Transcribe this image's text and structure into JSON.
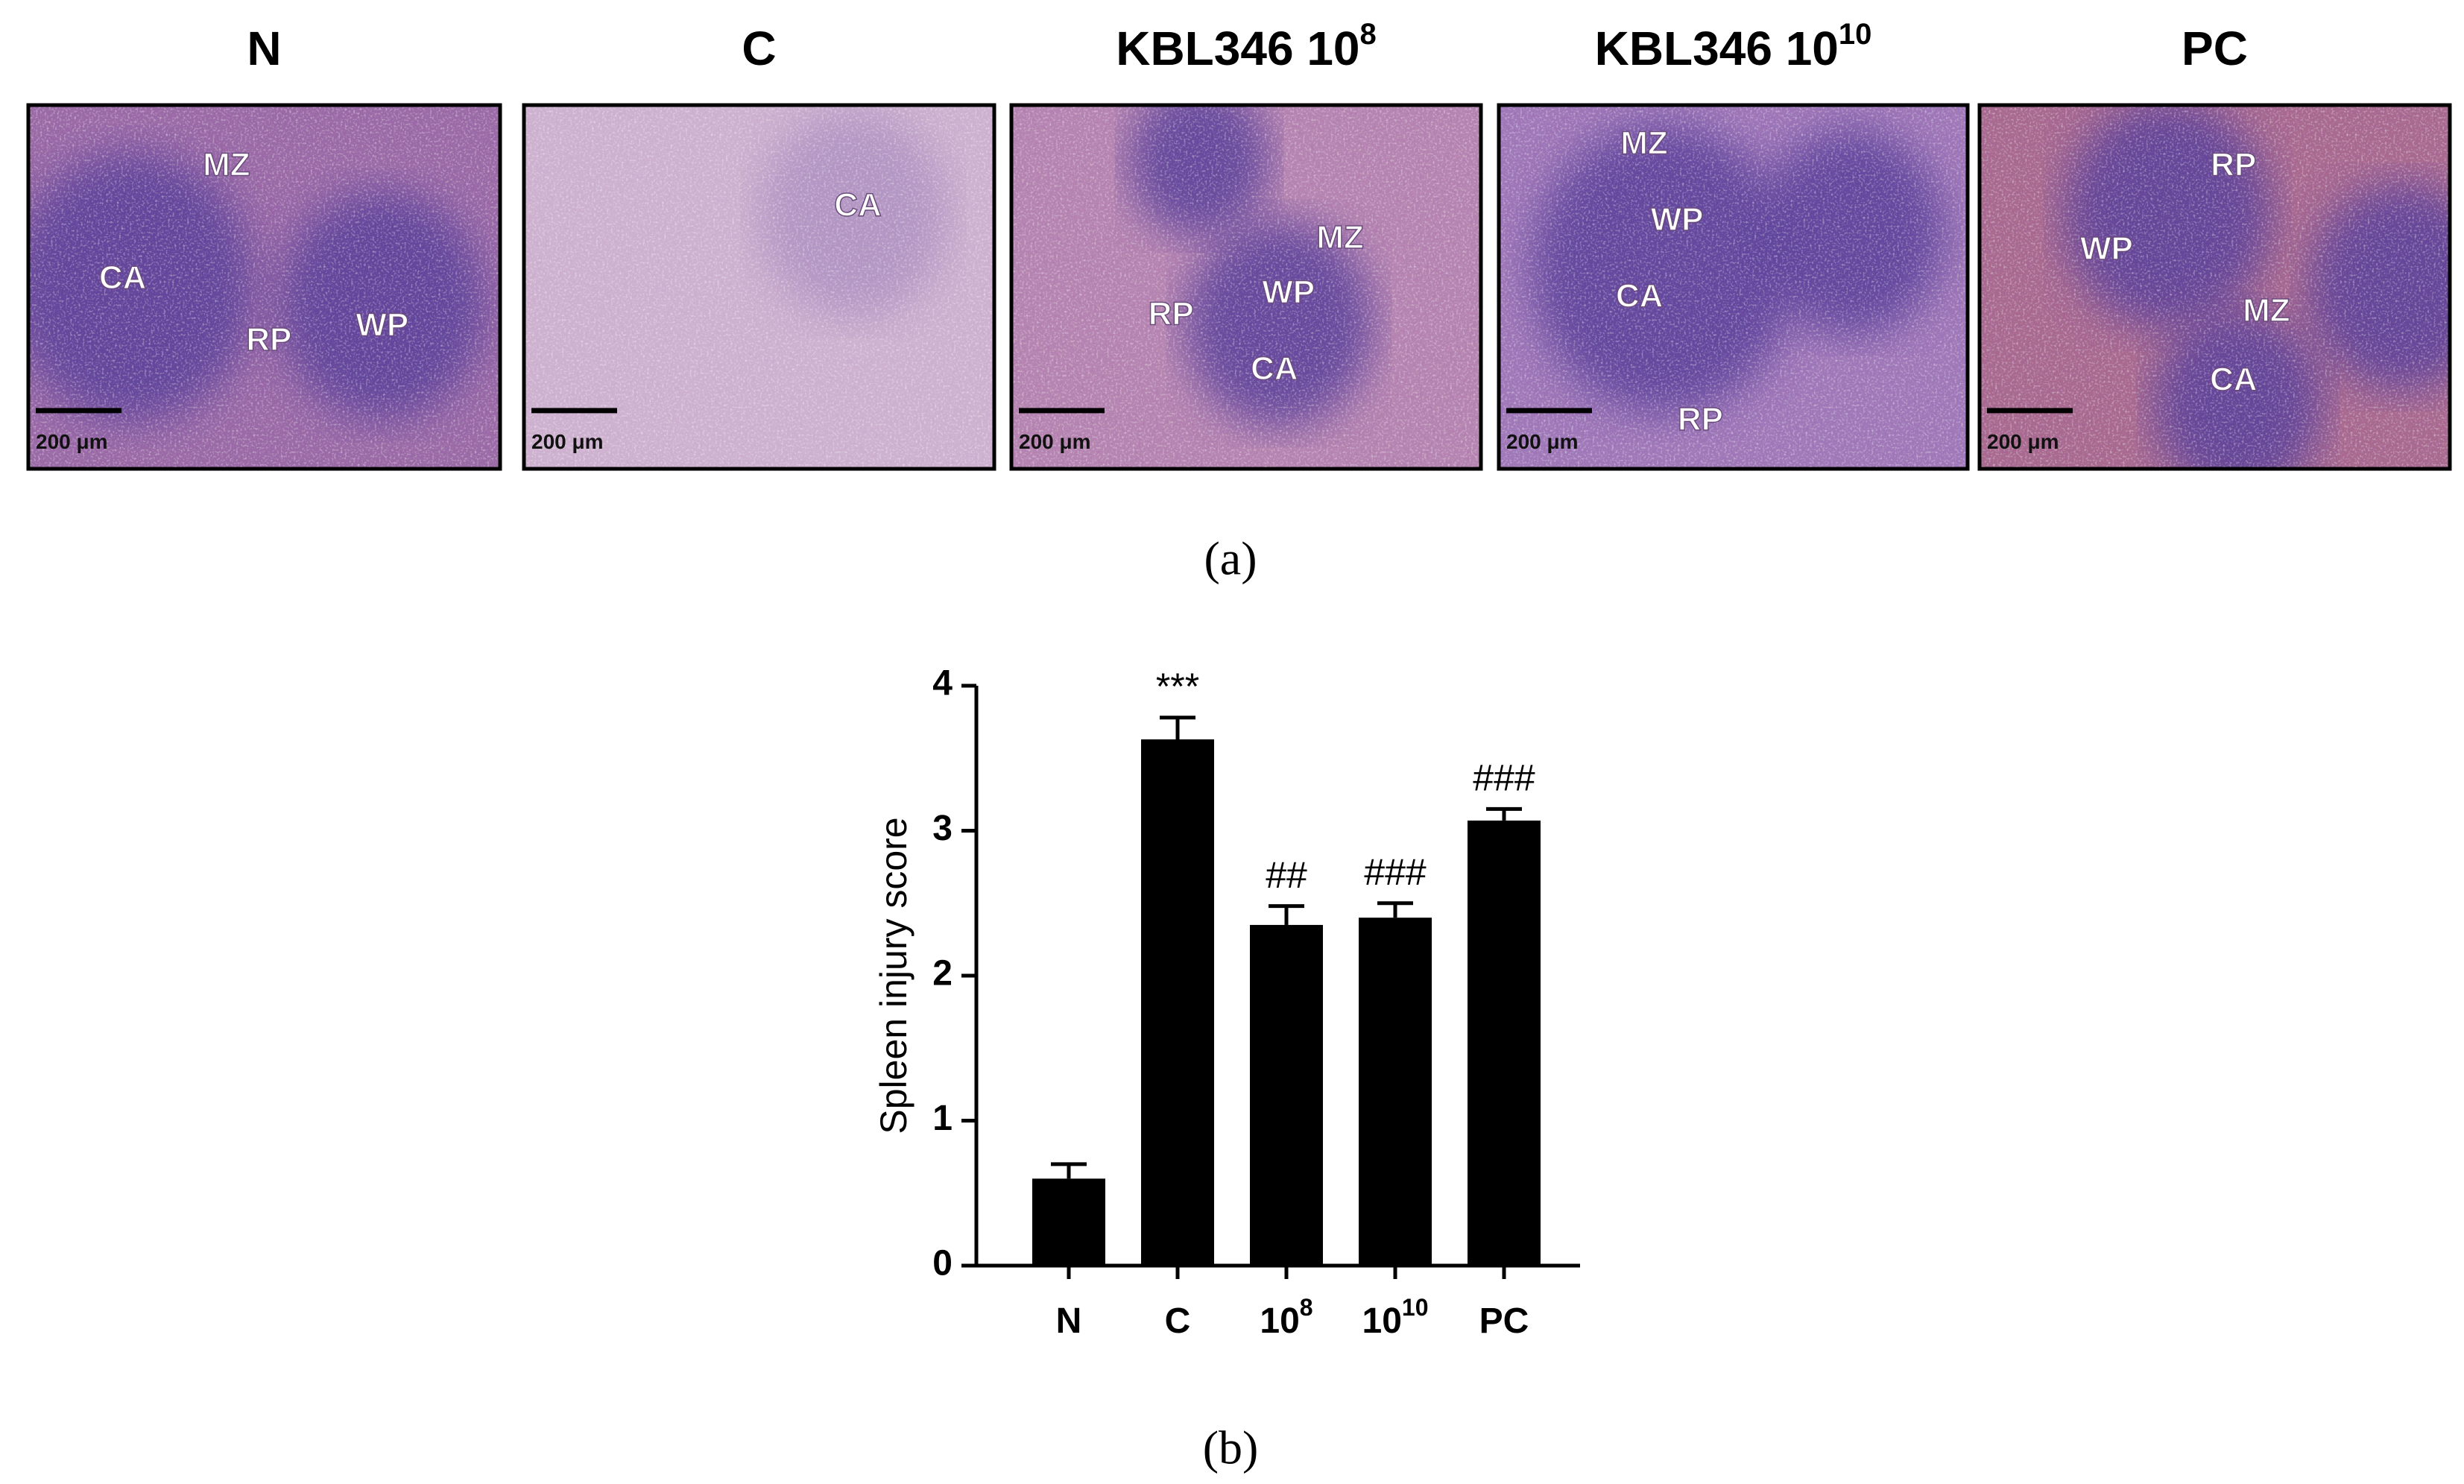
{
  "panel_a": {
    "label": "(a)",
    "panels": [
      {
        "title": "N",
        "labels": [
          "MZ",
          "CA",
          "RP",
          "WP"
        ],
        "scale_bar": "200 μm"
      },
      {
        "title": "C",
        "labels": [
          "CA"
        ],
        "scale_bar": "200 μm"
      },
      {
        "title": "KBL346 10",
        "title_sup": "8",
        "labels": [
          "MZ",
          "WP",
          "RP",
          "CA"
        ],
        "scale_bar": "200 μm"
      },
      {
        "title": "KBL346 10",
        "title_sup": "10",
        "labels": [
          "MZ",
          "WP",
          "CA",
          "RP"
        ],
        "scale_bar": "200 μm"
      },
      {
        "title": "PC",
        "labels": [
          "RP",
          "WP",
          "MZ",
          "CA"
        ],
        "scale_bar": "200 μm"
      }
    ]
  },
  "chart_data": {
    "type": "bar",
    "label": "(b)",
    "y_label": "Spleen injury score",
    "categories": [
      "N",
      "C",
      "10",
      "10",
      "PC"
    ],
    "category_superscripts": [
      null,
      null,
      "8",
      "10",
      null
    ],
    "values": [
      0.6,
      3.63,
      2.35,
      2.4,
      3.07
    ],
    "errors": [
      0.1,
      0.15,
      0.13,
      0.1,
      0.08
    ],
    "annotations": [
      null,
      "***",
      "##",
      "###",
      "###"
    ],
    "color": "#000000",
    "ylim": [
      0,
      4
    ],
    "yticks": [
      0,
      1,
      2,
      3,
      4
    ]
  }
}
